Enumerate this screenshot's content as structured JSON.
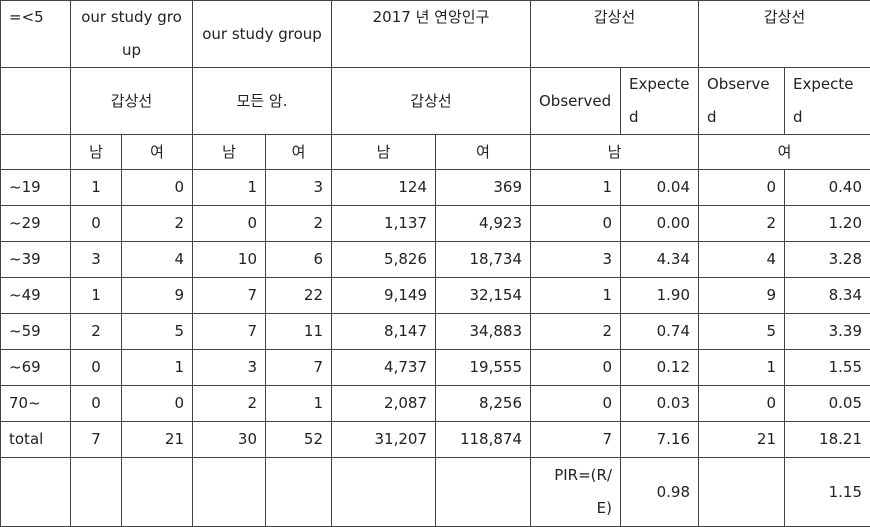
{
  "header": {
    "corner": "=<5",
    "study1": "our study group",
    "study2": "our study group",
    "pop": "2017 년 연앙인구",
    "thyroid1": "갑상선",
    "thyroid2": "갑상선"
  },
  "subheader": {
    "study1": "갑상선",
    "study2": "모든 암.",
    "pop": "갑상선",
    "obs1": "Observed",
    "exp1": "Expected",
    "obs2": "Observed",
    "exp2": "Expected"
  },
  "sexrow": {
    "m1": "남",
    "f1": "여",
    "m2": "남",
    "f2": "여",
    "m3": "남",
    "f3": "여",
    "male": "남",
    "female": "여"
  },
  "rows": [
    {
      "age": "~19",
      "v": [
        "1",
        "0",
        "1",
        "3",
        "124",
        "369",
        "1",
        "0.04",
        "0",
        "0.40"
      ]
    },
    {
      "age": "~29",
      "v": [
        "0",
        "2",
        "0",
        "2",
        "1,137",
        "4,923",
        "0",
        "0.00",
        "2",
        "1.20"
      ]
    },
    {
      "age": "~39",
      "v": [
        "3",
        "4",
        "10",
        "6",
        "5,826",
        "18,734",
        "3",
        "4.34",
        "4",
        "3.28"
      ]
    },
    {
      "age": "~49",
      "v": [
        "1",
        "9",
        "7",
        "22",
        "9,149",
        "32,154",
        "1",
        "1.90",
        "9",
        "8.34"
      ]
    },
    {
      "age": "~59",
      "v": [
        "2",
        "5",
        "7",
        "11",
        "8,147",
        "34,883",
        "2",
        "0.74",
        "5",
        "3.39"
      ]
    },
    {
      "age": "~69",
      "v": [
        "0",
        "1",
        "3",
        "7",
        "4,737",
        "19,555",
        "0",
        "0.12",
        "1",
        "1.55"
      ]
    },
    {
      "age": "70~",
      "v": [
        "0",
        "0",
        "2",
        "1",
        "2,087",
        "8,256",
        "0",
        "0.03",
        "0",
        "0.05"
      ]
    },
    {
      "age": "total",
      "v": [
        "7",
        "21",
        "30",
        "52",
        "31,207",
        "118,874",
        "7",
        "7.16",
        "21",
        "18.21"
      ]
    }
  ],
  "last": {
    "pir_label": "PIR=(R/E)",
    "pir1": "0.98",
    "pir2": "1.15"
  }
}
